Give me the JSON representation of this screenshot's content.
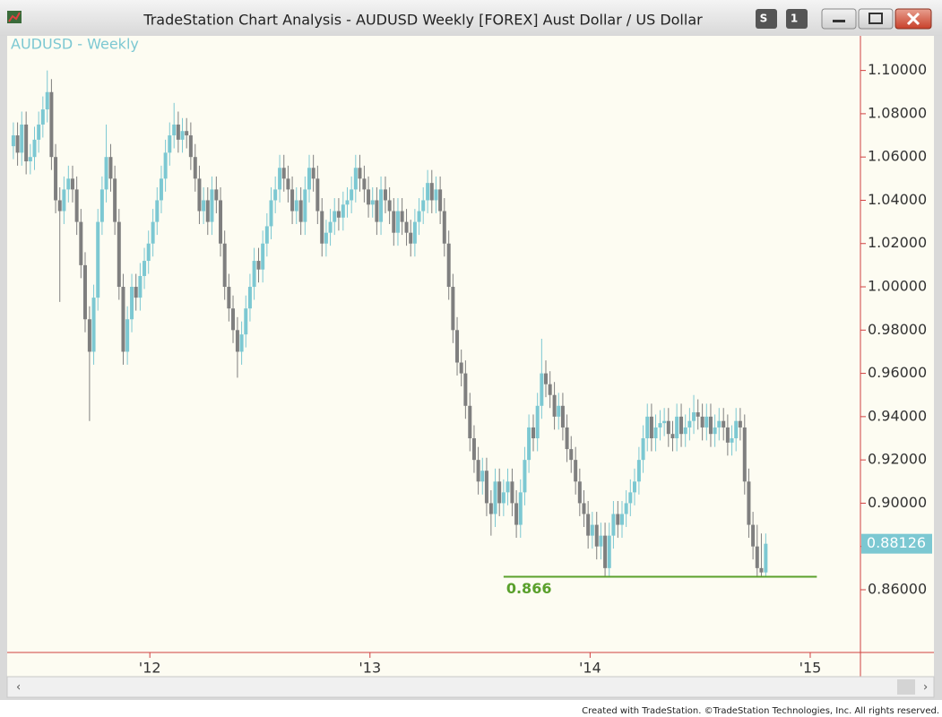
{
  "window": {
    "title": "TradeStation Chart Analysis - AUDUSD Weekly [FOREX] Aust Dollar / US Dollar",
    "buttons": [
      "S",
      "1"
    ]
  },
  "footer": "Created with TradeStation. ©TradeStation Technologies, Inc. All rights reserved.",
  "chart_data": {
    "type": "candlestick",
    "title": "AUDUSD - Weekly",
    "up_color": "#7cc8d2",
    "down_color": "#7f7f7f",
    "xlim": [
      2011.36,
      2015.22
    ],
    "xticks": [
      {
        "value": 2012,
        "label": "'12"
      },
      {
        "value": 2013,
        "label": "'13"
      },
      {
        "value": 2014,
        "label": "'14"
      },
      {
        "value": 2015,
        "label": "'15"
      }
    ],
    "ylim": [
      0.831,
      1.116
    ],
    "yticks": [
      {
        "value": 0.86,
        "label": "0.86000"
      },
      {
        "value": 0.88,
        "label": "0.88000"
      },
      {
        "value": 0.9,
        "label": "0.90000"
      },
      {
        "value": 0.92,
        "label": "0.92000"
      },
      {
        "value": 0.94,
        "label": "0.94000"
      },
      {
        "value": 0.96,
        "label": "0.96000"
      },
      {
        "value": 0.98,
        "label": "0.98000"
      },
      {
        "value": 1.0,
        "label": "1.00000"
      },
      {
        "value": 1.02,
        "label": "1.02000"
      },
      {
        "value": 1.04,
        "label": "1.04000"
      },
      {
        "value": 1.06,
        "label": "1.06000"
      },
      {
        "value": 1.08,
        "label": "1.08000"
      },
      {
        "value": 1.1,
        "label": "1.10000"
      }
    ],
    "support": {
      "value": 0.866,
      "color": "#5aa02c",
      "x": [
        2013.607,
        2015.03
      ]
    },
    "x": [
      2011.38,
      2011.399,
      2011.418,
      2011.438,
      2011.457,
      2011.476,
      2011.495,
      2011.514,
      2011.534,
      2011.553,
      2011.572,
      2011.591,
      2011.61,
      2011.63,
      2011.649,
      2011.668,
      2011.687,
      2011.706,
      2011.726,
      2011.745,
      2011.764,
      2011.783,
      2011.802,
      2011.822,
      2011.841,
      2011.86,
      2011.879,
      2011.898,
      2011.918,
      2011.937,
      2011.956,
      2011.975,
      2011.994,
      2012.014,
      2012.033,
      2012.052,
      2012.071,
      2012.09,
      2012.11,
      2012.129,
      2012.148,
      2012.167,
      2012.186,
      2012.206,
      2012.225,
      2012.244,
      2012.263,
      2012.282,
      2012.302,
      2012.321,
      2012.34,
      2012.359,
      2012.378,
      2012.398,
      2012.417,
      2012.436,
      2012.455,
      2012.474,
      2012.494,
      2012.513,
      2012.532,
      2012.551,
      2012.57,
      2012.59,
      2012.609,
      2012.628,
      2012.647,
      2012.666,
      2012.686,
      2012.705,
      2012.724,
      2012.743,
      2012.762,
      2012.782,
      2012.801,
      2012.82,
      2012.839,
      2012.858,
      2012.878,
      2012.897,
      2012.916,
      2012.935,
      2012.954,
      2012.974,
      2012.993,
      2013.012,
      2013.031,
      2013.05,
      2013.07,
      2013.089,
      2013.108,
      2013.127,
      2013.146,
      2013.166,
      2013.185,
      2013.204,
      2013.223,
      2013.242,
      2013.262,
      2013.281,
      2013.3,
      2013.319,
      2013.338,
      2013.358,
      2013.377,
      2013.396,
      2013.415,
      2013.434,
      2013.454,
      2013.473,
      2013.492,
      2013.511,
      2013.53,
      2013.55,
      2013.569,
      2013.588,
      2013.607,
      2013.626,
      2013.646,
      2013.665,
      2013.684,
      2013.703,
      2013.722,
      2013.742,
      2013.761,
      2013.78,
      2013.799,
      2013.818,
      2013.838,
      2013.857,
      2013.876,
      2013.895,
      2013.914,
      2013.934,
      2013.953,
      2013.972,
      2013.991,
      2014.01,
      2014.03,
      2014.049,
      2014.068,
      2014.087,
      2014.106,
      2014.126,
      2014.145,
      2014.164,
      2014.183,
      2014.202,
      2014.222,
      2014.241,
      2014.26,
      2014.279,
      2014.298,
      2014.318,
      2014.337,
      2014.356,
      2014.375,
      2014.394,
      2014.414,
      2014.433,
      2014.452,
      2014.471,
      2014.49,
      2014.51,
      2014.529,
      2014.548,
      2014.567,
      2014.586,
      2014.606,
      2014.625,
      2014.644,
      2014.663,
      2014.682,
      2014.702,
      2014.721,
      2014.74,
      2014.759,
      2014.778,
      2014.798
    ],
    "candles": [
      [
        1.065,
        1.076,
        1.059,
        1.07
      ],
      [
        1.07,
        1.076,
        1.056,
        1.062
      ],
      [
        1.062,
        1.081,
        1.056,
        1.075
      ],
      [
        1.075,
        1.081,
        1.052,
        1.058
      ],
      [
        1.058,
        1.066,
        1.052,
        1.06
      ],
      [
        1.06,
        1.074,
        1.054,
        1.068
      ],
      [
        1.068,
        1.081,
        1.062,
        1.075
      ],
      [
        1.075,
        1.088,
        1.069,
        1.082
      ],
      [
        1.082,
        1.1,
        1.076,
        1.09
      ],
      [
        1.09,
        1.096,
        1.054,
        1.06
      ],
      [
        1.06,
        1.066,
        1.034,
        1.04
      ],
      [
        1.04,
        1.046,
        0.993,
        1.035
      ],
      [
        1.035,
        1.051,
        1.029,
        1.045
      ],
      [
        1.045,
        1.056,
        1.039,
        1.05
      ],
      [
        1.05,
        1.056,
        1.039,
        1.045
      ],
      [
        1.045,
        1.051,
        1.024,
        1.03
      ],
      [
        1.03,
        1.036,
        1.004,
        1.01
      ],
      [
        1.01,
        1.016,
        0.979,
        0.985
      ],
      [
        0.985,
        0.991,
        0.938,
        0.97
      ],
      [
        0.97,
        1.001,
        0.964,
        0.995
      ],
      [
        0.995,
        1.036,
        0.989,
        1.03
      ],
      [
        1.03,
        1.051,
        1.024,
        1.045
      ],
      [
        1.045,
        1.075,
        1.039,
        1.06
      ],
      [
        1.06,
        1.066,
        1.044,
        1.05
      ],
      [
        1.05,
        1.056,
        1.024,
        1.03
      ],
      [
        1.03,
        1.036,
        0.994,
        1.0
      ],
      [
        1.0,
        1.006,
        0.964,
        0.97
      ],
      [
        0.97,
        0.991,
        0.964,
        0.985
      ],
      [
        0.985,
        1.006,
        0.979,
        1.0
      ],
      [
        1.0,
        1.006,
        0.989,
        0.995
      ],
      [
        0.995,
        1.011,
        0.989,
        1.005
      ],
      [
        1.005,
        1.018,
        0.999,
        1.012
      ],
      [
        1.012,
        1.026,
        1.006,
        1.02
      ],
      [
        1.02,
        1.036,
        1.014,
        1.03
      ],
      [
        1.03,
        1.046,
        1.024,
        1.04
      ],
      [
        1.04,
        1.056,
        1.034,
        1.05
      ],
      [
        1.05,
        1.068,
        1.044,
        1.062
      ],
      [
        1.062,
        1.076,
        1.056,
        1.07
      ],
      [
        1.07,
        1.085,
        1.064,
        1.075
      ],
      [
        1.075,
        1.081,
        1.062,
        1.068
      ],
      [
        1.068,
        1.078,
        1.062,
        1.072
      ],
      [
        1.072,
        1.078,
        1.064,
        1.07
      ],
      [
        1.07,
        1.076,
        1.054,
        1.06
      ],
      [
        1.06,
        1.066,
        1.044,
        1.05
      ],
      [
        1.05,
        1.056,
        1.029,
        1.035
      ],
      [
        1.035,
        1.046,
        1.029,
        1.04
      ],
      [
        1.04,
        1.046,
        1.024,
        1.03
      ],
      [
        1.03,
        1.051,
        1.024,
        1.045
      ],
      [
        1.045,
        1.051,
        1.034,
        1.04
      ],
      [
        1.04,
        1.046,
        1.014,
        1.02
      ],
      [
        1.02,
        1.026,
        0.994,
        1.0
      ],
      [
        1.0,
        1.006,
        0.984,
        0.99
      ],
      [
        0.99,
        0.996,
        0.974,
        0.98
      ],
      [
        0.98,
        0.986,
        0.958,
        0.97
      ],
      [
        0.97,
        0.984,
        0.964,
        0.978
      ],
      [
        0.978,
        0.996,
        0.972,
        0.99
      ],
      [
        0.99,
        1.006,
        0.984,
        1.0
      ],
      [
        1.0,
        1.018,
        0.994,
        1.012
      ],
      [
        1.012,
        1.018,
        1.002,
        1.008
      ],
      [
        1.008,
        1.026,
        1.002,
        1.02
      ],
      [
        1.02,
        1.034,
        1.014,
        1.028
      ],
      [
        1.028,
        1.046,
        1.022,
        1.04
      ],
      [
        1.04,
        1.051,
        1.034,
        1.045
      ],
      [
        1.045,
        1.061,
        1.039,
        1.055
      ],
      [
        1.055,
        1.061,
        1.044,
        1.05
      ],
      [
        1.05,
        1.056,
        1.039,
        1.045
      ],
      [
        1.045,
        1.051,
        1.029,
        1.035
      ],
      [
        1.035,
        1.046,
        1.029,
        1.04
      ],
      [
        1.04,
        1.046,
        1.024,
        1.03
      ],
      [
        1.03,
        1.051,
        1.024,
        1.045
      ],
      [
        1.045,
        1.061,
        1.039,
        1.055
      ],
      [
        1.055,
        1.061,
        1.044,
        1.05
      ],
      [
        1.05,
        1.056,
        1.029,
        1.035
      ],
      [
        1.035,
        1.041,
        1.014,
        1.02
      ],
      [
        1.02,
        1.031,
        1.014,
        1.025
      ],
      [
        1.025,
        1.036,
        1.019,
        1.03
      ],
      [
        1.03,
        1.041,
        1.024,
        1.035
      ],
      [
        1.035,
        1.041,
        1.026,
        1.032
      ],
      [
        1.032,
        1.044,
        1.026,
        1.038
      ],
      [
        1.038,
        1.046,
        1.032,
        1.04
      ],
      [
        1.04,
        1.051,
        1.034,
        1.045
      ],
      [
        1.045,
        1.061,
        1.039,
        1.055
      ],
      [
        1.055,
        1.061,
        1.044,
        1.05
      ],
      [
        1.05,
        1.056,
        1.039,
        1.045
      ],
      [
        1.045,
        1.051,
        1.032,
        1.038
      ],
      [
        1.038,
        1.046,
        1.032,
        1.04
      ],
      [
        1.04,
        1.046,
        1.024,
        1.03
      ],
      [
        1.03,
        1.051,
        1.024,
        1.045
      ],
      [
        1.045,
        1.051,
        1.034,
        1.04
      ],
      [
        1.04,
        1.046,
        1.029,
        1.035
      ],
      [
        1.035,
        1.041,
        1.019,
        1.025
      ],
      [
        1.025,
        1.041,
        1.019,
        1.035
      ],
      [
        1.035,
        1.041,
        1.024,
        1.03
      ],
      [
        1.03,
        1.036,
        1.019,
        1.025
      ],
      [
        1.025,
        1.031,
        1.014,
        1.02
      ],
      [
        1.02,
        1.036,
        1.014,
        1.03
      ],
      [
        1.03,
        1.041,
        1.024,
        1.035
      ],
      [
        1.035,
        1.046,
        1.029,
        1.04
      ],
      [
        1.04,
        1.054,
        1.034,
        1.048
      ],
      [
        1.048,
        1.054,
        1.034,
        1.04
      ],
      [
        1.04,
        1.051,
        1.034,
        1.045
      ],
      [
        1.045,
        1.051,
        1.029,
        1.035
      ],
      [
        1.035,
        1.041,
        1.014,
        1.02
      ],
      [
        1.02,
        1.026,
        0.994,
        1.0
      ],
      [
        1.0,
        1.006,
        0.974,
        0.98
      ],
      [
        0.98,
        0.986,
        0.959,
        0.965
      ],
      [
        0.965,
        0.971,
        0.954,
        0.96
      ],
      [
        0.96,
        0.966,
        0.939,
        0.945
      ],
      [
        0.945,
        0.951,
        0.924,
        0.93
      ],
      [
        0.93,
        0.936,
        0.914,
        0.92
      ],
      [
        0.92,
        0.926,
        0.904,
        0.91
      ],
      [
        0.91,
        0.921,
        0.904,
        0.915
      ],
      [
        0.915,
        0.921,
        0.894,
        0.9
      ],
      [
        0.9,
        0.906,
        0.885,
        0.895
      ],
      [
        0.895,
        0.916,
        0.889,
        0.91
      ],
      [
        0.91,
        0.916,
        0.894,
        0.9
      ],
      [
        0.9,
        0.911,
        0.894,
        0.905
      ],
      [
        0.905,
        0.916,
        0.899,
        0.91
      ],
      [
        0.91,
        0.916,
        0.894,
        0.9
      ],
      [
        0.9,
        0.906,
        0.884,
        0.89
      ],
      [
        0.89,
        0.911,
        0.884,
        0.905
      ],
      [
        0.905,
        0.926,
        0.899,
        0.92
      ],
      [
        0.92,
        0.941,
        0.914,
        0.935
      ],
      [
        0.935,
        0.941,
        0.924,
        0.93
      ],
      [
        0.93,
        0.951,
        0.924,
        0.945
      ],
      [
        0.945,
        0.976,
        0.939,
        0.96
      ],
      [
        0.96,
        0.966,
        0.949,
        0.955
      ],
      [
        0.955,
        0.961,
        0.944,
        0.95
      ],
      [
        0.95,
        0.956,
        0.934,
        0.94
      ],
      [
        0.94,
        0.951,
        0.934,
        0.945
      ],
      [
        0.945,
        0.951,
        0.929,
        0.935
      ],
      [
        0.935,
        0.941,
        0.919,
        0.925
      ],
      [
        0.925,
        0.931,
        0.914,
        0.92
      ],
      [
        0.92,
        0.926,
        0.904,
        0.91
      ],
      [
        0.91,
        0.916,
        0.894,
        0.9
      ],
      [
        0.9,
        0.906,
        0.889,
        0.895
      ],
      [
        0.895,
        0.901,
        0.879,
        0.885
      ],
      [
        0.885,
        0.896,
        0.879,
        0.89
      ],
      [
        0.89,
        0.896,
        0.874,
        0.88
      ],
      [
        0.88,
        0.891,
        0.874,
        0.885
      ],
      [
        0.885,
        0.891,
        0.866,
        0.87
      ],
      [
        0.87,
        0.891,
        0.866,
        0.885
      ],
      [
        0.885,
        0.901,
        0.879,
        0.895
      ],
      [
        0.895,
        0.901,
        0.884,
        0.89
      ],
      [
        0.89,
        0.901,
        0.884,
        0.895
      ],
      [
        0.895,
        0.906,
        0.889,
        0.9
      ],
      [
        0.9,
        0.911,
        0.894,
        0.905
      ],
      [
        0.905,
        0.916,
        0.899,
        0.91
      ],
      [
        0.91,
        0.926,
        0.904,
        0.92
      ],
      [
        0.92,
        0.936,
        0.914,
        0.93
      ],
      [
        0.93,
        0.946,
        0.924,
        0.94
      ],
      [
        0.94,
        0.946,
        0.924,
        0.93
      ],
      [
        0.93,
        0.941,
        0.924,
        0.935
      ],
      [
        0.935,
        0.943,
        0.929,
        0.937
      ],
      [
        0.937,
        0.944,
        0.931,
        0.938
      ],
      [
        0.938,
        0.944,
        0.926,
        0.932
      ],
      [
        0.932,
        0.938,
        0.924,
        0.93
      ],
      [
        0.93,
        0.946,
        0.924,
        0.94
      ],
      [
        0.94,
        0.946,
        0.926,
        0.932
      ],
      [
        0.932,
        0.941,
        0.926,
        0.935
      ],
      [
        0.935,
        0.944,
        0.929,
        0.938
      ],
      [
        0.938,
        0.95,
        0.932,
        0.942
      ],
      [
        0.942,
        0.948,
        0.934,
        0.94
      ],
      [
        0.94,
        0.946,
        0.929,
        0.935
      ],
      [
        0.935,
        0.946,
        0.929,
        0.94
      ],
      [
        0.94,
        0.946,
        0.926,
        0.932
      ],
      [
        0.932,
        0.941,
        0.926,
        0.935
      ],
      [
        0.935,
        0.944,
        0.929,
        0.938
      ],
      [
        0.938,
        0.944,
        0.929,
        0.935
      ],
      [
        0.935,
        0.941,
        0.922,
        0.928
      ],
      [
        0.928,
        0.936,
        0.922,
        0.93
      ],
      [
        0.93,
        0.944,
        0.924,
        0.938
      ],
      [
        0.938,
        0.944,
        0.929,
        0.935
      ],
      [
        0.935,
        0.941,
        0.904,
        0.91
      ],
      [
        0.91,
        0.916,
        0.884,
        0.89
      ],
      [
        0.89,
        0.896,
        0.874,
        0.88
      ],
      [
        0.88,
        0.89,
        0.866,
        0.87
      ],
      [
        0.87,
        0.886,
        0.866,
        0.868
      ],
      [
        0.868,
        0.886,
        0.866,
        0.88126
      ]
    ]
  }
}
